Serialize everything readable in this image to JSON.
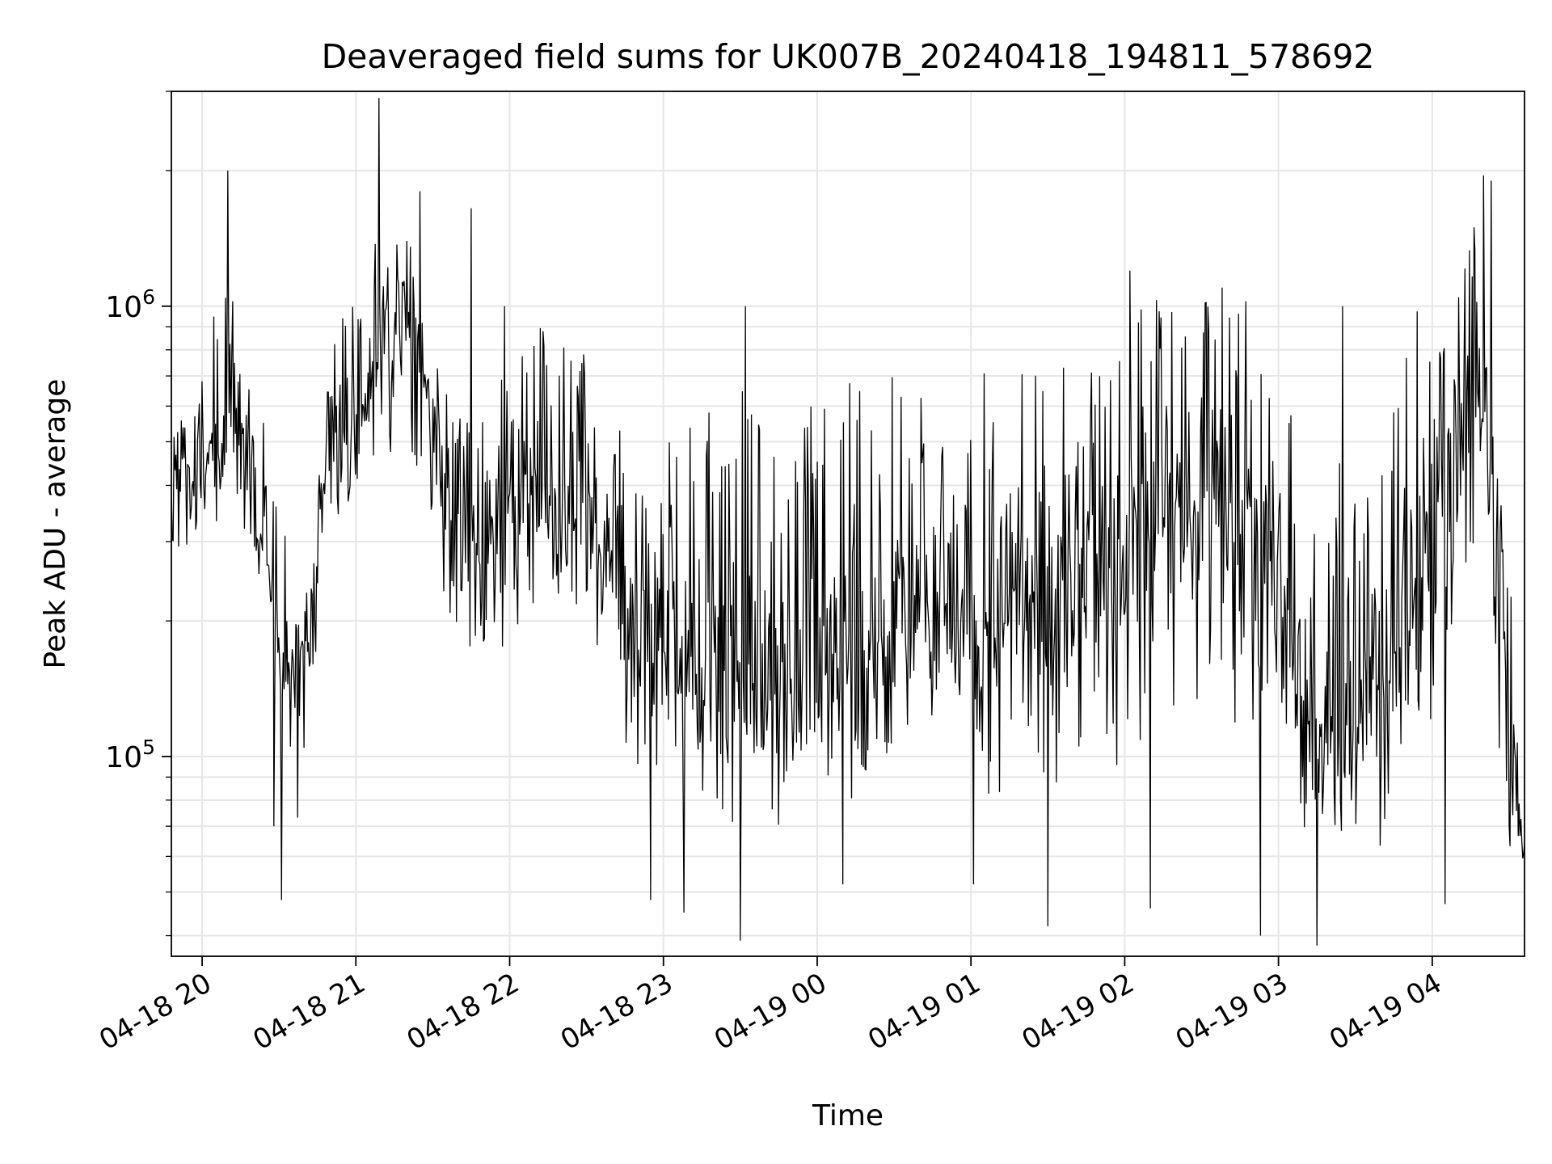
{
  "chart_data": {
    "type": "line",
    "title": "Deaveraged field sums for UK007B_20240418_194811_578692",
    "xlabel": "Time",
    "ylabel": "Peak ADU - average",
    "yscale": "log",
    "ylim": [
      36000,
      3000000
    ],
    "xlim": [
      "2024-04-18 19:48",
      "2024-04-19 04:36"
    ],
    "grid": true,
    "line_color": "#000000",
    "xticks": [
      {
        "value": "2024-04-18 20:00",
        "label": "04-18 20"
      },
      {
        "value": "2024-04-18 21:00",
        "label": "04-18 21"
      },
      {
        "value": "2024-04-18 22:00",
        "label": "04-18 22"
      },
      {
        "value": "2024-04-18 23:00",
        "label": "04-18 23"
      },
      {
        "value": "2024-04-19 00:00",
        "label": "04-19 00"
      },
      {
        "value": "2024-04-19 01:00",
        "label": "04-19 01"
      },
      {
        "value": "2024-04-19 02:00",
        "label": "04-19 02"
      },
      {
        "value": "2024-04-19 03:00",
        "label": "04-19 03"
      },
      {
        "value": "2024-04-19 04:00",
        "label": "04-19 04"
      }
    ],
    "yticks_major": [
      {
        "value": 100000,
        "base": "10",
        "exp": "5"
      },
      {
        "value": 1000000,
        "base": "10",
        "exp": "6"
      }
    ],
    "series": [
      {
        "x": [
          "2024-04-18 19:48",
          "2024-04-18 19:55",
          "2024-04-18 20:02",
          "2024-04-18 20:08",
          "2024-04-18 20:12",
          "2024-04-18 20:18",
          "2024-04-18 20:25",
          "2024-04-18 20:30",
          "2024-04-18 20:34",
          "2024-04-18 20:38",
          "2024-04-18 20:42",
          "2024-04-18 20:50",
          "2024-04-18 20:57",
          "2024-04-18 21:04",
          "2024-04-18 21:10",
          "2024-04-18 21:20",
          "2024-04-18 21:27",
          "2024-04-18 21:35",
          "2024-04-18 21:45",
          "2024-04-18 21:55",
          "2024-04-18 22:05",
          "2024-04-18 22:15",
          "2024-04-18 22:25",
          "2024-04-18 22:35",
          "2024-04-18 22:45",
          "2024-04-18 23:00",
          "2024-04-18 23:15",
          "2024-04-18 23:30",
          "2024-04-18 23:45",
          "2024-04-19 00:00",
          "2024-04-19 00:15",
          "2024-04-19 00:30",
          "2024-04-19 00:45",
          "2024-04-19 01:00",
          "2024-04-19 01:15",
          "2024-04-19 01:30",
          "2024-04-19 01:45",
          "2024-04-19 02:00",
          "2024-04-19 02:15",
          "2024-04-19 02:30",
          "2024-04-19 02:40",
          "2024-04-19 02:50",
          "2024-04-19 03:00",
          "2024-04-19 03:10",
          "2024-04-19 03:20",
          "2024-04-19 03:30",
          "2024-04-19 03:40",
          "2024-04-19 03:50",
          "2024-04-19 04:00",
          "2024-04-19 04:08",
          "2024-04-19 04:15",
          "2024-04-19 04:20",
          "2024-04-19 04:24",
          "2024-04-19 04:28",
          "2024-04-19 04:32",
          "2024-04-19 04:36"
        ],
        "center": [
          420000,
          410000,
          470000,
          520000,
          600000,
          470000,
          300000,
          200000,
          160000,
          140000,
          180000,
          560000,
          560000,
          620000,
          800000,
          900000,
          700000,
          370000,
          280000,
          300000,
          380000,
          400000,
          360000,
          290000,
          200000,
          170000,
          160000,
          150000,
          150000,
          160000,
          190000,
          200000,
          210000,
          210000,
          210000,
          200000,
          220000,
          300000,
          330000,
          310000,
          350000,
          330000,
          240000,
          140000,
          110000,
          115000,
          160000,
          240000,
          390000,
          520000,
          620000,
          560000,
          260000,
          150000,
          90000,
          60000
        ],
        "low": [
          280000,
          280000,
          300000,
          340000,
          360000,
          300000,
          190000,
          110000,
          80000,
          70000,
          100000,
          330000,
          300000,
          320000,
          430000,
          480000,
          380000,
          210000,
          160000,
          160000,
          200000,
          210000,
          180000,
          150000,
          100000,
          85000,
          75000,
          70000,
          70000,
          75000,
          80000,
          85000,
          85000,
          85000,
          80000,
          80000,
          80000,
          100000,
          120000,
          110000,
          120000,
          110000,
          90000,
          62000,
          55000,
          55000,
          60000,
          80000,
          120000,
          180000,
          280000,
          280000,
          130000,
          70000,
          50000,
          42000
        ],
        "high": [
          560000,
          580000,
          900000,
          1050000,
          1300000,
          800000,
          620000,
          360000,
          300000,
          270000,
          320000,
          1000000,
          1100000,
          1300000,
          1450000,
          1450000,
          1100000,
          650000,
          600000,
          650000,
          900000,
          950000,
          900000,
          650000,
          550000,
          500000,
          600000,
          650000,
          600000,
          650000,
          700000,
          700000,
          750000,
          750000,
          750000,
          700000,
          800000,
          1000000,
          1100000,
          1000000,
          1150000,
          1000000,
          850000,
          500000,
          480000,
          500000,
          650000,
          900000,
          1150000,
          1400000,
          1800000,
          1700000,
          700000,
          320000,
          200000,
          85000
        ],
        "spikes": [
          {
            "x": "2024-04-18 20:10",
            "y": 2000000
          },
          {
            "x": "2024-04-18 20:31",
            "y": 48000
          },
          {
            "x": "2024-04-18 20:28",
            "y": 70000
          },
          {
            "x": "2024-04-18 21:09",
            "y": 2900000
          },
          {
            "x": "2024-04-18 21:25",
            "y": 1800000
          },
          {
            "x": "2024-04-18 21:45",
            "y": 1650000
          },
          {
            "x": "2024-04-18 21:58",
            "y": 1000000
          },
          {
            "x": "2024-04-18 22:55",
            "y": 48000
          },
          {
            "x": "2024-04-18 23:08",
            "y": 45000
          },
          {
            "x": "2024-04-18 23:30",
            "y": 39000
          },
          {
            "x": "2024-04-18 23:32",
            "y": 1000000
          },
          {
            "x": "2024-04-19 00:10",
            "y": 52000
          },
          {
            "x": "2024-04-19 01:01",
            "y": 52000
          },
          {
            "x": "2024-04-19 01:30",
            "y": 42000
          },
          {
            "x": "2024-04-19 02:02",
            "y": 1200000
          },
          {
            "x": "2024-04-19 02:10",
            "y": 46000
          },
          {
            "x": "2024-04-19 02:38",
            "y": 1100000
          },
          {
            "x": "2024-04-19 02:53",
            "y": 40000
          },
          {
            "x": "2024-04-19 03:15",
            "y": 38000
          },
          {
            "x": "2024-04-19 03:25",
            "y": 1000000
          },
          {
            "x": "2024-04-19 04:05",
            "y": 47000
          },
          {
            "x": "2024-04-19 04:20",
            "y": 1950000
          },
          {
            "x": "2024-04-19 04:23",
            "y": 1900000
          }
        ]
      }
    ]
  }
}
